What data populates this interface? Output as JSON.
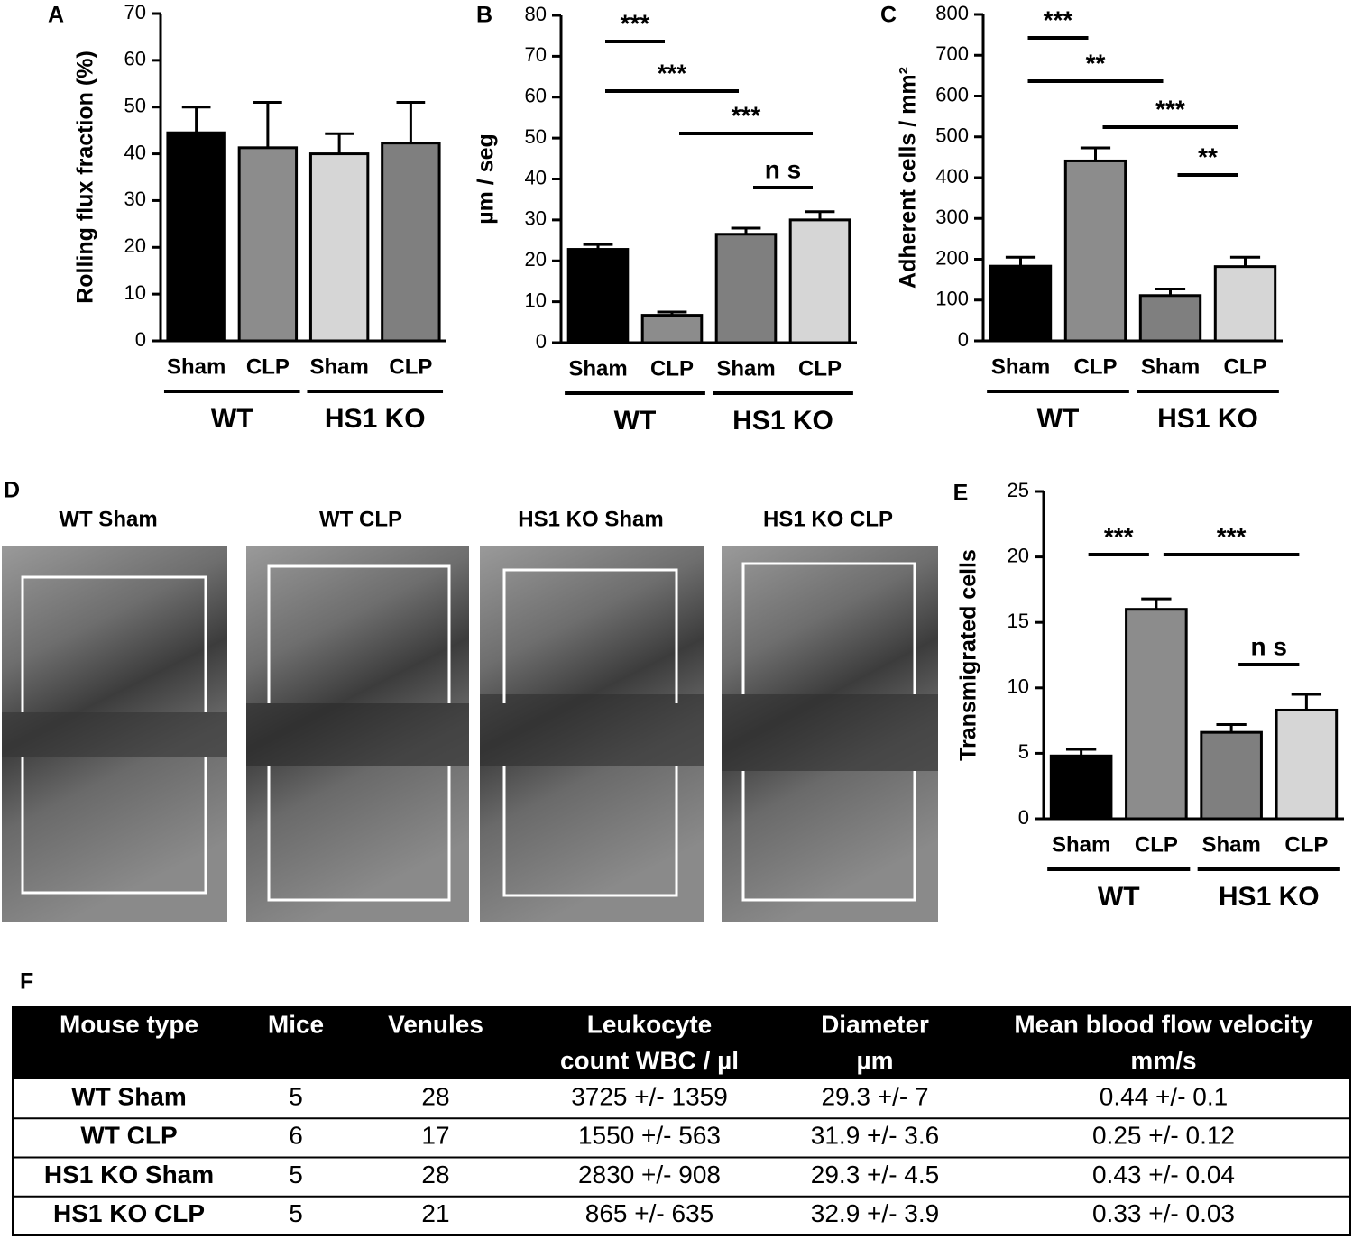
{
  "chart_data": [
    {
      "type": "bar",
      "panel": "A",
      "ylabel": "Rolling flux fraction (%)",
      "categories": [
        "Sham",
        "CLP",
        "Sham",
        "CLP"
      ],
      "groups": [
        "WT",
        "HS1 KO"
      ],
      "values": [
        44.5,
        41.3,
        40,
        42.3
      ],
      "errors": [
        5.5,
        9.7,
        4.3,
        8.7
      ],
      "colors": [
        "#000000",
        "#8c8c8c",
        "#d6d6d6",
        "#7f7f7f"
      ],
      "ylim": [
        0,
        70
      ],
      "yticks": [
        0,
        10,
        20,
        30,
        40,
        50,
        60,
        70
      ],
      "annotations": []
    },
    {
      "type": "bar",
      "panel": "B",
      "ylabel": "µm / seg",
      "categories": [
        "Sham",
        "CLP",
        "Sham",
        "CLP"
      ],
      "groups": [
        "WT",
        "HS1 KO"
      ],
      "values": [
        22.8,
        6.7,
        26.5,
        30
      ],
      "errors": [
        1.2,
        0.8,
        1.5,
        2
      ],
      "colors": [
        "#000000",
        "#8c8c8c",
        "#7f7f7f",
        "#d6d6d6"
      ],
      "ylim": [
        0,
        80
      ],
      "yticks": [
        0,
        10,
        20,
        30,
        40,
        50,
        60,
        70,
        80
      ],
      "annotations": [
        {
          "label": "***",
          "between": [
            0,
            1
          ]
        },
        {
          "label": "***",
          "between": [
            0,
            2
          ]
        },
        {
          "label": "***",
          "between": [
            1,
            3
          ]
        },
        {
          "label": "n s",
          "between": [
            2,
            3
          ]
        }
      ]
    },
    {
      "type": "bar",
      "panel": "C",
      "ylabel": "Adherent cells / mm²",
      "categories": [
        "Sham",
        "CLP",
        "Sham",
        "CLP"
      ],
      "groups": [
        "WT",
        "HS1 KO"
      ],
      "values": [
        183,
        441,
        111,
        182
      ],
      "errors": [
        22,
        32,
        16,
        23
      ],
      "colors": [
        "#000000",
        "#8c8c8c",
        "#7f7f7f",
        "#d6d6d6"
      ],
      "ylim": [
        0,
        800
      ],
      "yticks": [
        0,
        100,
        200,
        300,
        400,
        500,
        600,
        700,
        800
      ],
      "annotations": [
        {
          "label": "***",
          "between": [
            0,
            1
          ]
        },
        {
          "label": "**",
          "between": [
            0,
            2
          ]
        },
        {
          "label": "***",
          "between": [
            1,
            3
          ]
        },
        {
          "label": "**",
          "between": [
            2,
            3
          ]
        }
      ]
    },
    {
      "type": "bar",
      "panel": "E",
      "ylabel": "Transmigrated cells",
      "categories": [
        "Sham",
        "CLP",
        "Sham",
        "CLP"
      ],
      "groups": [
        "WT",
        "HS1 KO"
      ],
      "values": [
        4.8,
        16,
        6.6,
        8.3
      ],
      "errors": [
        0.5,
        0.8,
        0.6,
        1.2
      ],
      "colors": [
        "#000000",
        "#8c8c8c",
        "#7f7f7f",
        "#d6d6d6"
      ],
      "ylim": [
        0,
        25
      ],
      "yticks": [
        0,
        5,
        10,
        15,
        20,
        25
      ],
      "annotations": [
        {
          "label": "***",
          "between": [
            0,
            1
          ]
        },
        {
          "label": "***",
          "between": [
            1,
            3
          ]
        },
        {
          "label": "n s",
          "between": [
            2,
            3
          ]
        }
      ]
    }
  ],
  "images": {
    "panel": "D",
    "labels": [
      "WT Sham",
      "WT CLP",
      "HS1 KO Sham",
      "HS1 KO CLP"
    ]
  },
  "table": {
    "panel": "F",
    "header": [
      [
        "Mouse type"
      ],
      [
        "Mice"
      ],
      [
        "Venules"
      ],
      [
        "Leukocyte",
        "count WBC / µl"
      ],
      [
        "Diameter",
        "µm"
      ],
      [
        "Mean blood flow velocity",
        "mm/s"
      ]
    ],
    "rows": [
      [
        "WT Sham",
        "5",
        "28",
        "3725 +/- 1359",
        "29.3 +/- 7",
        "0.44 +/- 0.1"
      ],
      [
        "WT CLP",
        "6",
        "17",
        "1550 +/- 563",
        "31.9 +/- 3.6",
        "0.25 +/- 0.12"
      ],
      [
        "HS1 KO Sham",
        "5",
        "28",
        "2830 +/- 908",
        "29.3 +/- 4.5",
        "0.43 +/- 0.04"
      ],
      [
        "HS1 KO CLP",
        "5",
        "21",
        "865 +/- 635",
        "32.9 +/- 3.9",
        "0.33 +/- 0.03"
      ]
    ]
  }
}
